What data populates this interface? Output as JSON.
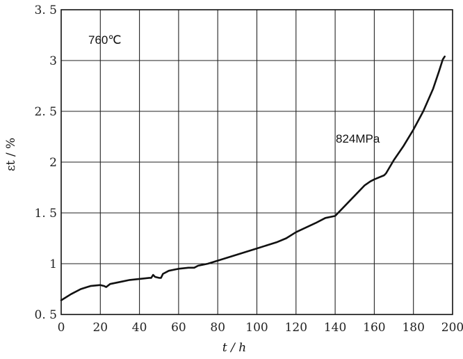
{
  "chart_data": {
    "type": "line",
    "title": "",
    "xlabel": "t / h",
    "ylabel": "εt / %",
    "xlim": [
      0,
      200
    ],
    "ylim": [
      0.5,
      3.5
    ],
    "xticks": [
      "0",
      "20",
      "40",
      "60",
      "80",
      "100",
      "120",
      "140",
      "160",
      "180",
      "200"
    ],
    "yticks": [
      "0. 5",
      "1",
      "1. 5",
      "2",
      "2. 5",
      "3",
      "3. 5"
    ],
    "grid": true,
    "annotations": [
      "760℃",
      "824MPa"
    ],
    "series": [
      {
        "x": [
          0,
          5,
          10,
          15,
          20,
          22,
          23,
          25,
          30,
          35,
          40,
          45,
          46,
          47,
          48,
          50,
          51,
          52,
          55,
          60,
          65,
          68,
          70,
          75,
          80,
          90,
          100,
          110,
          115,
          120,
          130,
          135,
          140,
          145,
          150,
          155,
          158,
          160,
          165,
          166,
          170,
          175,
          180,
          185,
          190,
          193,
          195,
          196
        ],
        "y": [
          0.64,
          0.7,
          0.75,
          0.78,
          0.79,
          0.78,
          0.77,
          0.8,
          0.82,
          0.84,
          0.85,
          0.86,
          0.86,
          0.89,
          0.87,
          0.86,
          0.86,
          0.9,
          0.93,
          0.95,
          0.96,
          0.96,
          0.98,
          1.0,
          1.03,
          1.09,
          1.15,
          1.21,
          1.25,
          1.31,
          1.4,
          1.45,
          1.47,
          1.57,
          1.67,
          1.77,
          1.81,
          1.83,
          1.87,
          1.89,
          2.02,
          2.16,
          2.32,
          2.5,
          2.72,
          2.89,
          3.01,
          3.04
        ]
      }
    ]
  }
}
